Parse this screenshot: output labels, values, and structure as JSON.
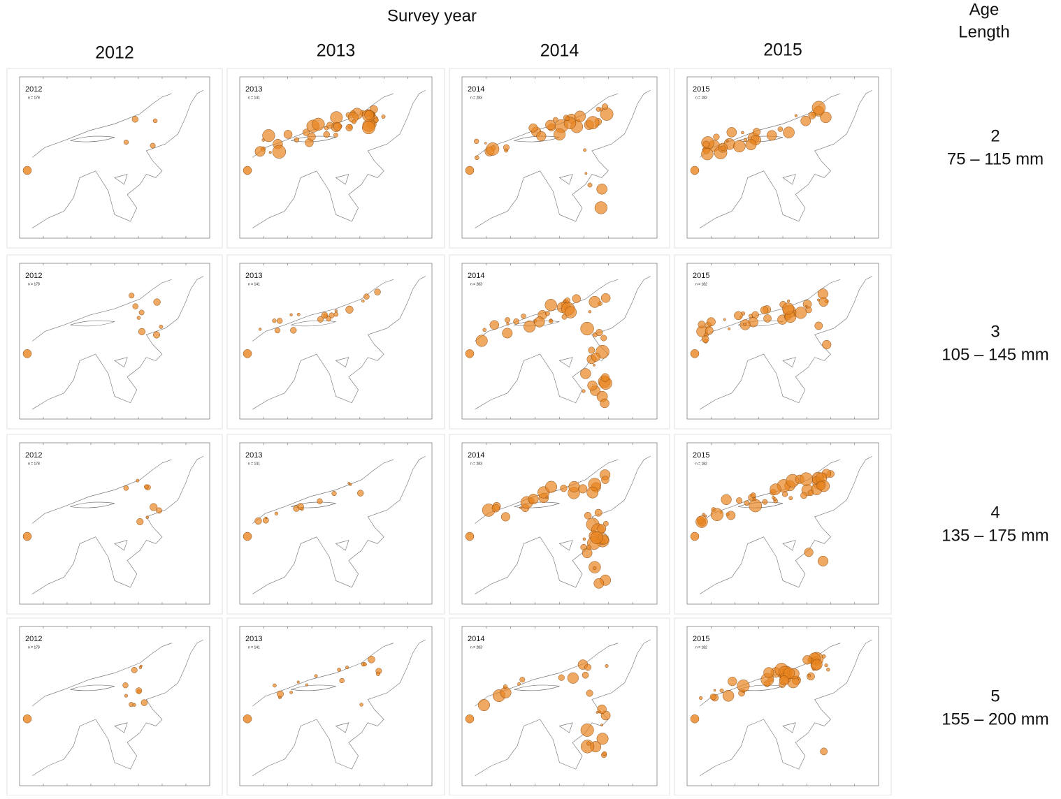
{
  "header": {
    "title": "Survey year",
    "side_title": [
      "Age",
      "Length"
    ]
  },
  "columns": [
    "2012",
    "2013",
    "2014",
    "2015"
  ],
  "panel_labels": [
    {
      "year": "2012",
      "n": "n = 178"
    },
    {
      "year": "2013",
      "n": "n = 141"
    },
    {
      "year": "2014",
      "n": "n = 283"
    },
    {
      "year": "2015",
      "n": "n = 182"
    }
  ],
  "rows": [
    {
      "age": "2",
      "length": "75 – 115 mm"
    },
    {
      "age": "3",
      "length": "105 – 145 mm"
    },
    {
      "age": "4",
      "length": "135 – 175 mm"
    },
    {
      "age": "5",
      "length": "155 – 200 mm"
    }
  ]
}
